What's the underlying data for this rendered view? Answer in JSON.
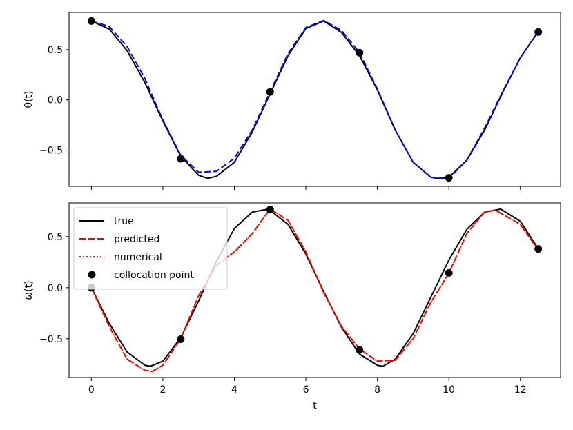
{
  "chart_data": [
    {
      "type": "line",
      "ylabel": "θ(t)",
      "xlabel": "",
      "xlim": [
        -0.625,
        13.125
      ],
      "ylim": [
        -0.86,
        0.87
      ],
      "xticks": [
        0,
        2,
        4,
        6,
        8,
        10,
        12
      ],
      "xticklabels_visible": false,
      "yticks": [
        -0.5,
        0.0,
        0.5
      ],
      "yticklabels": [
        "−0.5",
        "0.0",
        "0.5"
      ],
      "grid": false,
      "series": [
        {
          "name": "true",
          "color": "#000000",
          "style": "solid",
          "x": [
            0,
            0.5,
            1,
            1.5,
            2,
            2.5,
            3,
            3.25,
            3.5,
            4,
            4.5,
            5,
            5.5,
            6,
            6.5,
            7,
            7.5,
            8,
            8.5,
            9,
            9.5,
            9.75,
            10,
            10.5,
            11,
            11.5,
            12,
            12.5
          ],
          "y": [
            0.785,
            0.705,
            0.49,
            0.17,
            -0.21,
            -0.56,
            -0.75,
            -0.78,
            -0.76,
            -0.62,
            -0.32,
            0.06,
            0.44,
            0.71,
            0.785,
            0.67,
            0.44,
            0.1,
            -0.3,
            -0.62,
            -0.77,
            -0.785,
            -0.77,
            -0.6,
            -0.3,
            0.07,
            0.42,
            0.68
          ]
        },
        {
          "name": "predicted",
          "color": "#0000ff",
          "style": "dashed",
          "x": [
            0,
            0.5,
            1,
            1.5,
            2,
            2.5,
            3,
            3.5,
            4,
            4.5,
            5,
            5.5,
            6,
            6.5,
            7,
            7.5,
            8,
            8.5,
            9,
            9.5,
            10,
            10.5,
            11,
            11.5,
            12,
            12.5
          ],
          "y": [
            0.785,
            0.73,
            0.53,
            0.21,
            -0.2,
            -0.55,
            -0.72,
            -0.71,
            -0.58,
            -0.3,
            0.08,
            0.46,
            0.72,
            0.79,
            0.69,
            0.47,
            0.11,
            -0.3,
            -0.62,
            -0.77,
            -0.78,
            -0.6,
            -0.28,
            0.08,
            0.42,
            0.68
          ]
        }
      ],
      "collocation_points": {
        "x": [
          0,
          2.5,
          5,
          7.5,
          10,
          12.5
        ],
        "y": [
          0.785,
          -0.585,
          0.08,
          0.47,
          -0.775,
          0.675
        ]
      }
    },
    {
      "type": "line",
      "ylabel": "ω(t)",
      "xlabel": "t",
      "xlim": [
        -0.625,
        13.125
      ],
      "ylim": [
        -0.88,
        0.83
      ],
      "xticks": [
        0,
        2,
        4,
        6,
        8,
        10,
        12
      ],
      "xticklabels": [
        "0",
        "2",
        "4",
        "6",
        "8",
        "10",
        "12"
      ],
      "yticks": [
        -0.5,
        0.0,
        0.5
      ],
      "yticklabels": [
        "−0.5",
        "0.0",
        "0.5"
      ],
      "grid": false,
      "legend_position": "upper-left",
      "legend": [
        {
          "label": "true",
          "color": "#000000",
          "style": "solid"
        },
        {
          "label": "predicted",
          "color": "#ff0000",
          "style": "dashed"
        },
        {
          "label": "numerical",
          "color": "#ff0000",
          "style": "dotted"
        },
        {
          "label": "collocation point",
          "color": "#000000",
          "style": "marker"
        }
      ],
      "series": [
        {
          "name": "true",
          "color": "#000000",
          "style": "solid",
          "x": [
            0,
            0.5,
            1,
            1.5,
            1.65,
            2,
            2.5,
            3,
            3.5,
            4,
            4.5,
            4.95,
            5.5,
            6,
            6.5,
            7,
            7.5,
            8,
            8.15,
            8.5,
            9,
            9.5,
            10,
            10.5,
            11,
            11.45,
            12,
            12.5
          ],
          "y": [
            0.0,
            -0.35,
            -0.63,
            -0.76,
            -0.77,
            -0.72,
            -0.49,
            -0.13,
            0.26,
            0.58,
            0.74,
            0.77,
            0.62,
            0.33,
            -0.04,
            -0.39,
            -0.65,
            -0.76,
            -0.77,
            -0.7,
            -0.45,
            -0.09,
            0.27,
            0.57,
            0.74,
            0.77,
            0.65,
            0.38
          ]
        },
        {
          "name": "predicted",
          "color": "#ff0000",
          "style": "dashed",
          "x": [
            0,
            0.5,
            1,
            1.5,
            1.7,
            2,
            2.5,
            3,
            3.5,
            4,
            4.5,
            5,
            5.5,
            6,
            6.5,
            7,
            7.5,
            8,
            8.5,
            9,
            9.5,
            10,
            10.5,
            11,
            11.3,
            12,
            12.5
          ],
          "y": [
            0.0,
            -0.38,
            -0.7,
            -0.81,
            -0.82,
            -0.76,
            -0.5,
            -0.08,
            0.22,
            0.35,
            0.53,
            0.77,
            0.66,
            0.35,
            -0.05,
            -0.38,
            -0.6,
            -0.72,
            -0.71,
            -0.5,
            -0.14,
            0.14,
            0.53,
            0.74,
            0.76,
            0.62,
            0.37
          ]
        },
        {
          "name": "numerical",
          "color": "#ff0000",
          "style": "dotted",
          "x": [
            0,
            0.5,
            1,
            1.5,
            1.7,
            2,
            2.5,
            3,
            3.5,
            4,
            4.5,
            5,
            5.5,
            6,
            6.5,
            7,
            7.5,
            8,
            8.5,
            9,
            9.5,
            10,
            10.5,
            11,
            11.3,
            12,
            12.5
          ],
          "y": [
            0.0,
            -0.38,
            -0.7,
            -0.81,
            -0.82,
            -0.76,
            -0.5,
            -0.08,
            0.22,
            0.35,
            0.53,
            0.77,
            0.66,
            0.35,
            -0.05,
            -0.38,
            -0.6,
            -0.72,
            -0.71,
            -0.5,
            -0.14,
            0.14,
            0.53,
            0.74,
            0.76,
            0.62,
            0.37
          ]
        }
      ],
      "collocation_points": {
        "x": [
          0,
          2.5,
          5,
          7.5,
          10,
          12.5
        ],
        "y": [
          0.0,
          -0.505,
          0.765,
          -0.61,
          0.145,
          0.38
        ]
      }
    }
  ]
}
